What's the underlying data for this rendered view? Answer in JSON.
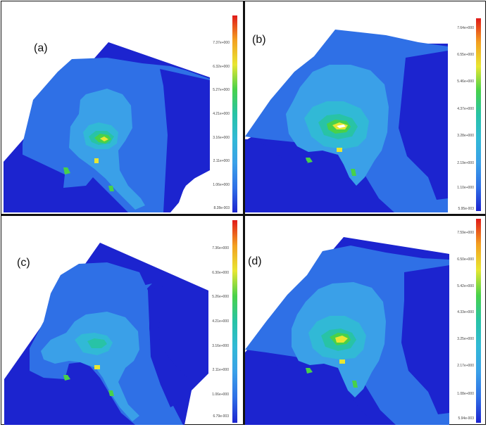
{
  "colors": {
    "deep_blue": "#1c24cf",
    "blue": "#2f70e6",
    "light_blue": "#3aa0e8",
    "cyan": "#31b9d6",
    "teal": "#28c3a6",
    "green": "#48d14a",
    "yellow": "#e8e632",
    "orange": "#f3a020",
    "red": "#e01a1a"
  },
  "panels": [
    {
      "label": "(a)",
      "scale_ticks": [
        "7.37e+000",
        "6.32e+000",
        "5.27e+000",
        "4.21e+000",
        "3.16e+000",
        "2.11e+000",
        "1.06e+000",
        "8.28e-003"
      ]
    },
    {
      "label": "(b)",
      "scale_ticks": [
        "7.64e+000",
        "6.55e+000",
        "5.46e+000",
        "4.37e+000",
        "3.28e+000",
        "2.19e+000",
        "1.10e+000",
        "5.95e-003"
      ]
    },
    {
      "label": "(c)",
      "scale_ticks": [
        "7.36e+000",
        "6.30e+000",
        "5.26e+000",
        "4.21e+000",
        "3.16e+000",
        "2.11e+000",
        "1.06e+000",
        "6.79e-003"
      ]
    },
    {
      "label": "(d)",
      "scale_ticks": [
        "7.59e+000",
        "6.50e+000",
        "5.42e+000",
        "4.33e+000",
        "3.25e+000",
        "2.17e+000",
        "1.08e+000",
        "5.94e-003"
      ]
    }
  ]
}
